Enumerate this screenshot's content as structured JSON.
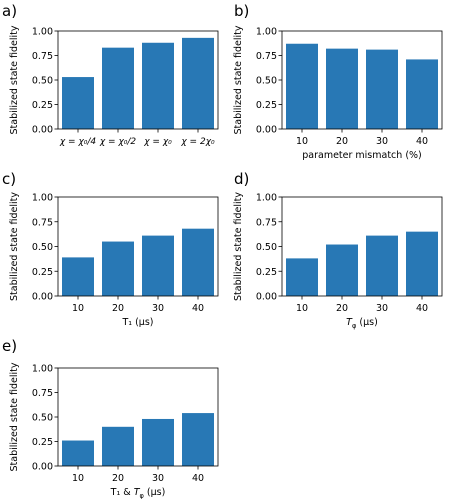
{
  "colors": {
    "bar": "#2878b5",
    "axis": "#000000"
  },
  "chart_data": [
    {
      "id": "a",
      "panel_label": "a)",
      "type": "bar",
      "categories": [
        "χ = χ₀/4",
        "χ = χ₀/2",
        "χ = χ₀",
        "χ = 2χ₀"
      ],
      "values": [
        0.53,
        0.83,
        0.88,
        0.93
      ],
      "xlabel": "",
      "ylabel": "Stabilized state fidelity",
      "ylim": [
        0,
        1
      ],
      "yticks": [
        "0.00",
        "0.25",
        "0.50",
        "0.75",
        "1.00"
      ],
      "grid": false
    },
    {
      "id": "b",
      "panel_label": "b)",
      "type": "bar",
      "categories": [
        "10",
        "20",
        "30",
        "40"
      ],
      "values": [
        0.87,
        0.82,
        0.81,
        0.71
      ],
      "xlabel": "parameter mismatch (%)",
      "ylabel": "Stabilized state fidelity",
      "ylim": [
        0,
        1
      ],
      "yticks": [
        "0.00",
        "0.25",
        "0.50",
        "0.75",
        "1.00"
      ],
      "grid": false
    },
    {
      "id": "c",
      "panel_label": "c)",
      "type": "bar",
      "categories": [
        "10",
        "20",
        "30",
        "40"
      ],
      "values": [
        0.39,
        0.55,
        0.61,
        0.68
      ],
      "xlabel": "T₁ (μs)",
      "ylabel": "Stabilized state fidelity",
      "ylim": [
        0,
        1
      ],
      "yticks": [
        "0.00",
        "0.25",
        "0.50",
        "0.75",
        "1.00"
      ],
      "grid": false
    },
    {
      "id": "d",
      "panel_label": "d)",
      "type": "bar",
      "categories": [
        "10",
        "20",
        "30",
        "40"
      ],
      "values": [
        0.38,
        0.52,
        0.61,
        0.65
      ],
      "xlabel": "T_φ (μs)",
      "ylabel": "Stabilized state fidelity",
      "ylim": [
        0,
        1
      ],
      "yticks": [
        "0.00",
        "0.25",
        "0.50",
        "0.75",
        "1.00"
      ],
      "grid": false
    },
    {
      "id": "e",
      "panel_label": "e)",
      "type": "bar",
      "categories": [
        "10",
        "20",
        "30",
        "40"
      ],
      "values": [
        0.26,
        0.4,
        0.48,
        0.54
      ],
      "xlabel": "T₁ & T_φ (μs)",
      "ylabel": "Stabilized state fidelity",
      "ylim": [
        0,
        1
      ],
      "yticks": [
        "0.00",
        "0.25",
        "0.50",
        "0.75",
        "1.00"
      ],
      "grid": false
    }
  ]
}
